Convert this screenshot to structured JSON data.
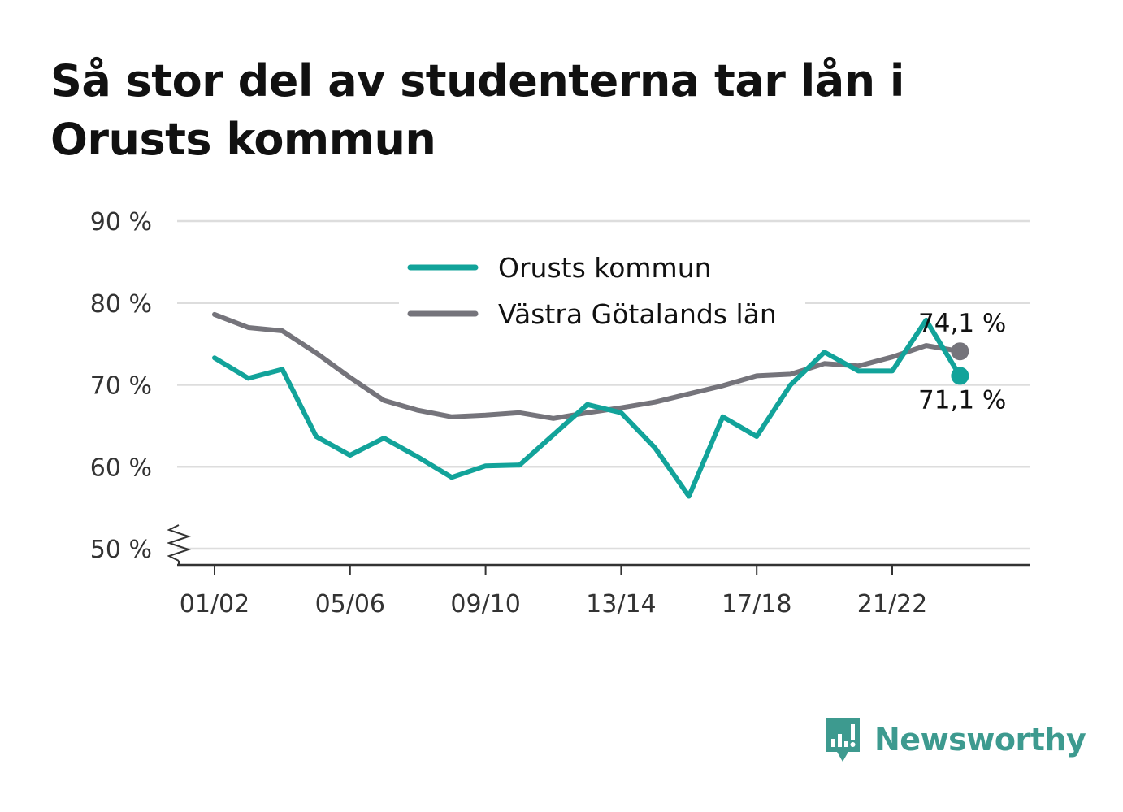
{
  "title": "Så stor del av studenterna tar lån i Orusts kommun",
  "colors": {
    "series_primary": "#12a39a",
    "series_secondary": "#75747b",
    "grid": "#dddddd",
    "axis": "#333333",
    "brand": "#3d9a8f"
  },
  "brand": {
    "name": "Newsworthy",
    "icon": "newsworthy-logo-icon"
  },
  "chart_data": {
    "type": "line",
    "title": "Så stor del av studenterna tar lån i Orusts kommun",
    "xlabel": "",
    "ylabel": "",
    "ylim": [
      50,
      90
    ],
    "y_axis_broken": true,
    "yticks": [
      50,
      60,
      70,
      80,
      90
    ],
    "ytick_labels": [
      "50 %",
      "60 %",
      "70 %",
      "80 %",
      "90 %"
    ],
    "grid": true,
    "legend_position": "top-center",
    "x": [
      "01/02",
      "02/03",
      "03/04",
      "04/05",
      "05/06",
      "06/07",
      "07/08",
      "08/09",
      "09/10",
      "10/11",
      "11/12",
      "12/13",
      "13/14",
      "14/15",
      "15/16",
      "16/17",
      "17/18",
      "18/19",
      "19/20",
      "20/21",
      "21/22",
      "22/23",
      "23/24"
    ],
    "xtick_labels": [
      "01/02",
      "05/06",
      "09/10",
      "13/14",
      "17/18",
      "21/22"
    ],
    "series": [
      {
        "name": "Orusts kommun",
        "color": "#12a39a",
        "values": [
          73.3,
          70.8,
          71.9,
          63.7,
          61.4,
          63.5,
          61.2,
          58.7,
          60.1,
          60.2,
          63.9,
          67.6,
          66.6,
          62.3,
          56.4,
          66.1,
          63.7,
          70.0,
          74.0,
          71.7,
          71.7,
          77.9,
          71.1
        ],
        "end_label": "71,1 %"
      },
      {
        "name": "Västra Götalands län",
        "color": "#75747b",
        "values": [
          78.6,
          77.0,
          76.6,
          73.9,
          70.9,
          68.1,
          66.9,
          66.1,
          66.3,
          66.6,
          65.9,
          66.6,
          67.2,
          67.9,
          68.9,
          69.9,
          71.1,
          71.3,
          72.6,
          72.3,
          73.4,
          74.8,
          74.1
        ],
        "end_label": "74,1 %"
      }
    ]
  }
}
